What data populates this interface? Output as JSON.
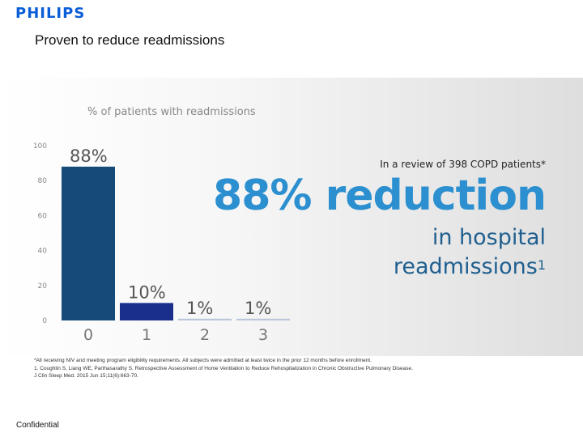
{
  "brand": "PHILIPS",
  "subtitle": "Proven to reduce readmissions",
  "chart_data": {
    "type": "bar",
    "ylabel": "% of patients with readmissions",
    "categories": [
      "0",
      "1",
      "2",
      "3"
    ],
    "values": [
      88,
      10,
      1,
      1
    ],
    "value_labels": [
      "88%",
      "10%",
      "1%",
      "1%"
    ],
    "yticks": [
      0,
      20,
      40,
      60,
      80,
      100
    ],
    "ylim": [
      0,
      100
    ],
    "grid": false,
    "colors": [
      "#164a78",
      "#1a2e8c",
      "#b9c7d8",
      "#b9c7d8"
    ]
  },
  "callout": {
    "intro": "In a review of 398 COPD patients*",
    "headline": "88% reduction",
    "sub_line1": "in hospital",
    "sub_line2": "readmissions",
    "sub_sup": "1"
  },
  "footnote": {
    "line1": "*All receiving NIV and meeting program eligibility requirements. All subjects were admitted at least twice in the prior 12 months before enrollment.",
    "line2": "1. Coughlin S, Liang WE, Parthasarathy S. Retrospective Assessment of Home Ventilation to Reduce Rehospitalization in Chronic Obstructive Pulmonary Disease. J Clin Sleep Med. 2015 Jun 15;11(6):663-70."
  },
  "confidential": "Confidential"
}
